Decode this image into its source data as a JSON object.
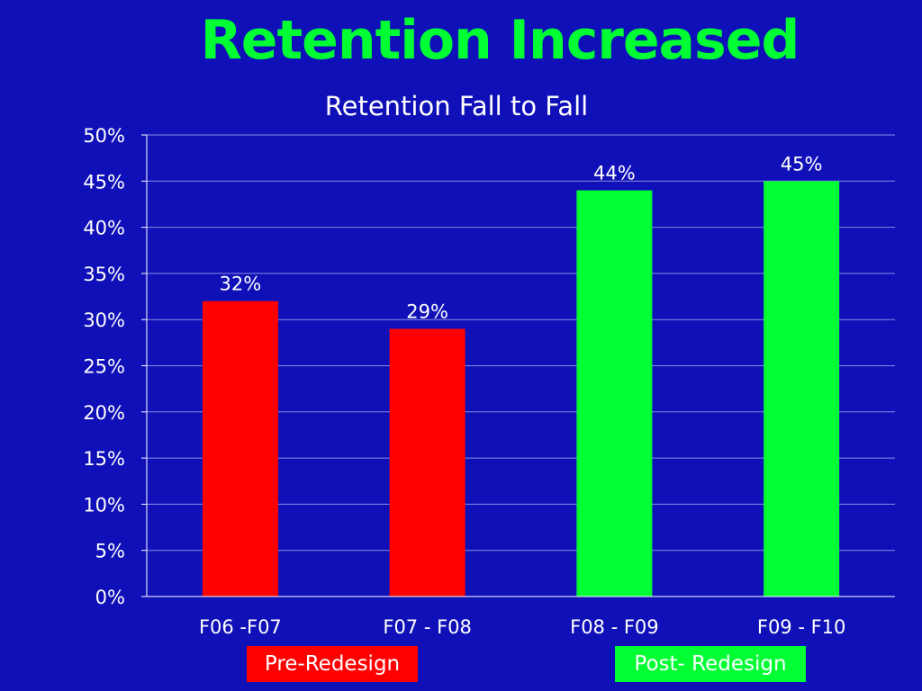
{
  "slide": {
    "title": "Retention Increased"
  },
  "colors": {
    "background": "#1010b8",
    "title": "#00ff33",
    "pre_redesign": "#ff0000",
    "post_redesign": "#00ff33",
    "text": "#ffffff"
  },
  "groups": {
    "pre_label": "Pre-Redesign",
    "post_label": "Post- Redesign"
  },
  "chart_data": {
    "type": "bar",
    "title": "Retention Fall to Fall",
    "xlabel": "",
    "ylabel": "",
    "categories": [
      "F06 -F07",
      "F07 - F08",
      "F08 - F09",
      "F09 - F10"
    ],
    "values": [
      32,
      29,
      44,
      45
    ],
    "data_labels": [
      "32%",
      "29%",
      "44%",
      "45%"
    ],
    "bar_groups": [
      "pre_redesign",
      "pre_redesign",
      "post_redesign",
      "post_redesign"
    ],
    "ylim": [
      0,
      50
    ],
    "y_ticks": [
      0,
      5,
      10,
      15,
      20,
      25,
      30,
      35,
      40,
      45,
      50
    ],
    "y_tick_labels": [
      "0%",
      "5%",
      "10%",
      "15%",
      "20%",
      "25%",
      "30%",
      "35%",
      "40%",
      "45%",
      "50%"
    ],
    "grid": true,
    "legend": "none"
  }
}
